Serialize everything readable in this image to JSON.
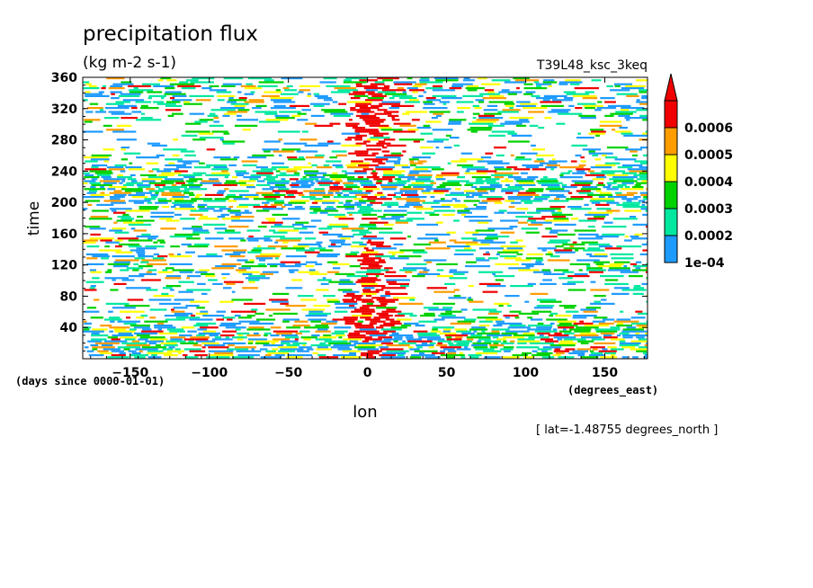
{
  "chart_data": {
    "type": "heatmap",
    "title": "precipitation flux",
    "units": "(kg m-2 s-1)",
    "experiment": "T39L48_ksc_3keq",
    "xlabel": "lon",
    "xunits": "(degrees_east)",
    "ylabel": "time",
    "yunits": "(days since 0000-01-01)",
    "note": "[ lat=-1.48755 degrees_north ]",
    "xlim": [
      -180,
      177
    ],
    "ylim": [
      0,
      360
    ],
    "xticks": [
      -150,
      -100,
      -50,
      0,
      50,
      100,
      150
    ],
    "xtick_labels": [
      "−150",
      "−100",
      "−50",
      "0",
      "50",
      "100",
      "150"
    ],
    "yticks": [
      40,
      80,
      120,
      160,
      200,
      240,
      280,
      320,
      360
    ],
    "ytick_labels": [
      "40",
      "80",
      "120",
      "160",
      "200",
      "240",
      "280",
      "320",
      "360"
    ],
    "colorbar": {
      "levels": [
        0.0001,
        0.0002,
        0.0003,
        0.0004,
        0.0005,
        0.0006
      ],
      "labels": [
        "1e-04",
        "0.0002",
        "0.0003",
        "0.0004",
        "0.0005",
        "0.0006"
      ],
      "colors": [
        "#1e9bff",
        "#00e8a0",
        "#00d200",
        "#ffff00",
        "#ff9c00",
        "#f00000"
      ],
      "extend": "max"
    },
    "field_description_values": {
      "convective_band_lon_center": 0,
      "convective_band_halfwidth_deg": 15
    }
  }
}
